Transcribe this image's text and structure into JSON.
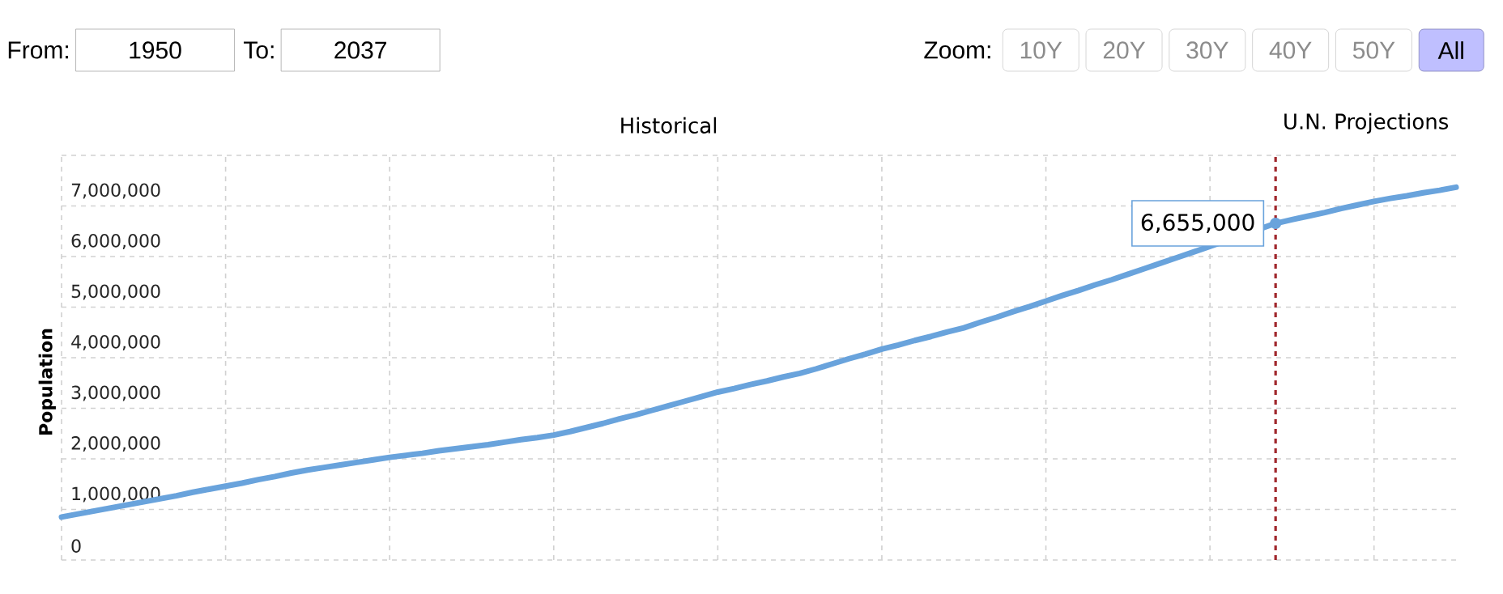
{
  "chart_data": {
    "type": "line",
    "ylabel": "Population",
    "categories": [
      null,
      null,
      null,
      null,
      null,
      null,
      null,
      null,
      null,
      null,
      null,
      null,
      null,
      null,
      null,
      null,
      null,
      null,
      null,
      null,
      null,
      null,
      null,
      null,
      null,
      null,
      null,
      null,
      null,
      null,
      null,
      null,
      null,
      null,
      null,
      null,
      null,
      null,
      null,
      null,
      null,
      null,
      null,
      null,
      null,
      null,
      null,
      null,
      null,
      null,
      null,
      null,
      null,
      null,
      null,
      null,
      null,
      null,
      null,
      null,
      null,
      null,
      null,
      null,
      null,
      null,
      null,
      null,
      null,
      null,
      null,
      null,
      null,
      null,
      null,
      null,
      null,
      null,
      null,
      null,
      null,
      null,
      null,
      null,
      null,
      null
    ],
    "values": [
      850000,
      910000,
      970000,
      1030000,
      1090000,
      1150000,
      1210000,
      1270000,
      1340000,
      1400000,
      1460000,
      1520000,
      1590000,
      1650000,
      1720000,
      1780000,
      1830000,
      1880000,
      1930000,
      1980000,
      2030000,
      2070000,
      2110000,
      2160000,
      2200000,
      2240000,
      2280000,
      2330000,
      2380000,
      2420000,
      2470000,
      2540000,
      2620000,
      2700000,
      2790000,
      2870000,
      2960000,
      3050000,
      3140000,
      3230000,
      3320000,
      3390000,
      3470000,
      3540000,
      3620000,
      3690000,
      3780000,
      3880000,
      3980000,
      4070000,
      4170000,
      4250000,
      4340000,
      4420000,
      4510000,
      4590000,
      4700000,
      4800000,
      4910000,
      5010000,
      5120000,
      5230000,
      5330000,
      5440000,
      5540000,
      5650000,
      5760000,
      5870000,
      5980000,
      6090000,
      6200000,
      null,
      null,
      null,
      6655000,
      6730000,
      6800000,
      6870000,
      6950000,
      7020000,
      7090000,
      7150000,
      7200000,
      7260000,
      7310000,
      7370000
    ],
    "value_labels": [
      null,
      null,
      null,
      null,
      null,
      null,
      null,
      null,
      null,
      null,
      null,
      null,
      null,
      null,
      null,
      null,
      null,
      null,
      null,
      null,
      null,
      null,
      null,
      null,
      null,
      null,
      null,
      null,
      null,
      null,
      null,
      null,
      null,
      null,
      null,
      null,
      null,
      null,
      null,
      null,
      null,
      null,
      null,
      null,
      null,
      null,
      null,
      null,
      null,
      null,
      null,
      null,
      null,
      null,
      null,
      null,
      null,
      null,
      null,
      null,
      null,
      null,
      null,
      null,
      null,
      null,
      null,
      null,
      null,
      null,
      null,
      null,
      null,
      null,
      "6,655,000",
      null,
      null,
      null,
      null,
      null,
      null,
      null,
      null,
      null,
      null,
      null
    ],
    "color": "#69a3dc",
    "ylim": [
      0,
      8000000
    ],
    "yticks": [
      0,
      {
        "value": 1000000,
        "label": "1,000,000"
      },
      {
        "value": 2000000,
        "label": "2,000,000"
      },
      {
        "value": 3000000,
        "label": "3,000,000"
      },
      {
        "value": 4000000,
        "label": "4,000,000"
      },
      {
        "value": 5000000,
        "label": "5,000,000"
      },
      {
        "value": 6000000,
        "label": "6,000,000"
      },
      {
        "value": 7000000,
        "label": "7,000,000"
      },
      {
        "value": 8000000,
        "label": null
      }
    ],
    "grid": true,
    "annotations": [
      "From:",
      "1950",
      "To:",
      "2037",
      "Zoom:",
      "10Y",
      "20Y",
      "30Y",
      "40Y",
      "50Y",
      "All",
      "Historical",
      "U.N. Projections"
    ]
  }
}
